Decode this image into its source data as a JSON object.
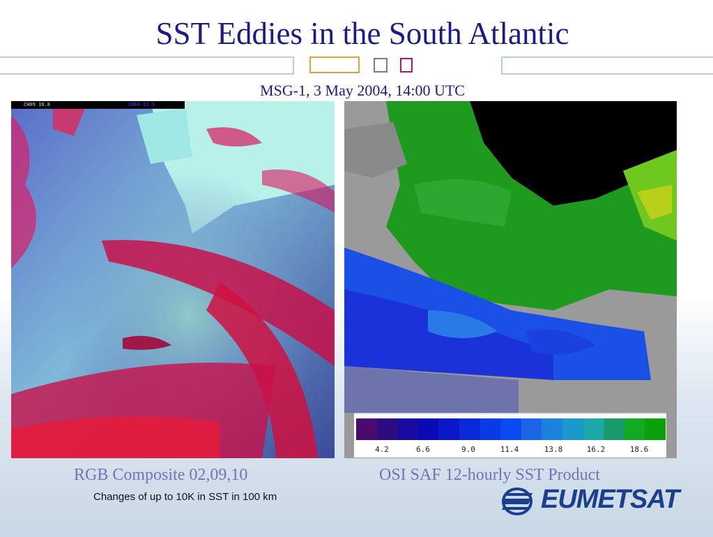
{
  "slide": {
    "title": "SST Eddies in the South Atlantic",
    "subtitle": "MSG-1, 3 May 2004, 14:00 UTC"
  },
  "left_image": {
    "channel_label": "CH09 10.8",
    "timestamp_label": "2004-12-3",
    "caption": "RGB Composite 02,09,10"
  },
  "right_image": {
    "caption": "OSI SAF 12-hourly SST Product",
    "colorbar": {
      "colors": [
        "#4a0a6e",
        "#2d0a82",
        "#1a0aa0",
        "#0a0ab4",
        "#0a18c8",
        "#0a28d8",
        "#0a3ae6",
        "#0a4af2",
        "#1a66e6",
        "#1a82dc",
        "#1a9acc",
        "#1aa8a8",
        "#1a9a6c",
        "#12aa22",
        "#0aa00a"
      ],
      "labels": [
        "4.2",
        "6.6",
        "9.0",
        "11.4",
        "13.8",
        "16.2",
        "18.6"
      ]
    }
  },
  "note": "Changes of up to 10K in SST in 100 km",
  "logo": {
    "text": "EUMETSAT"
  }
}
